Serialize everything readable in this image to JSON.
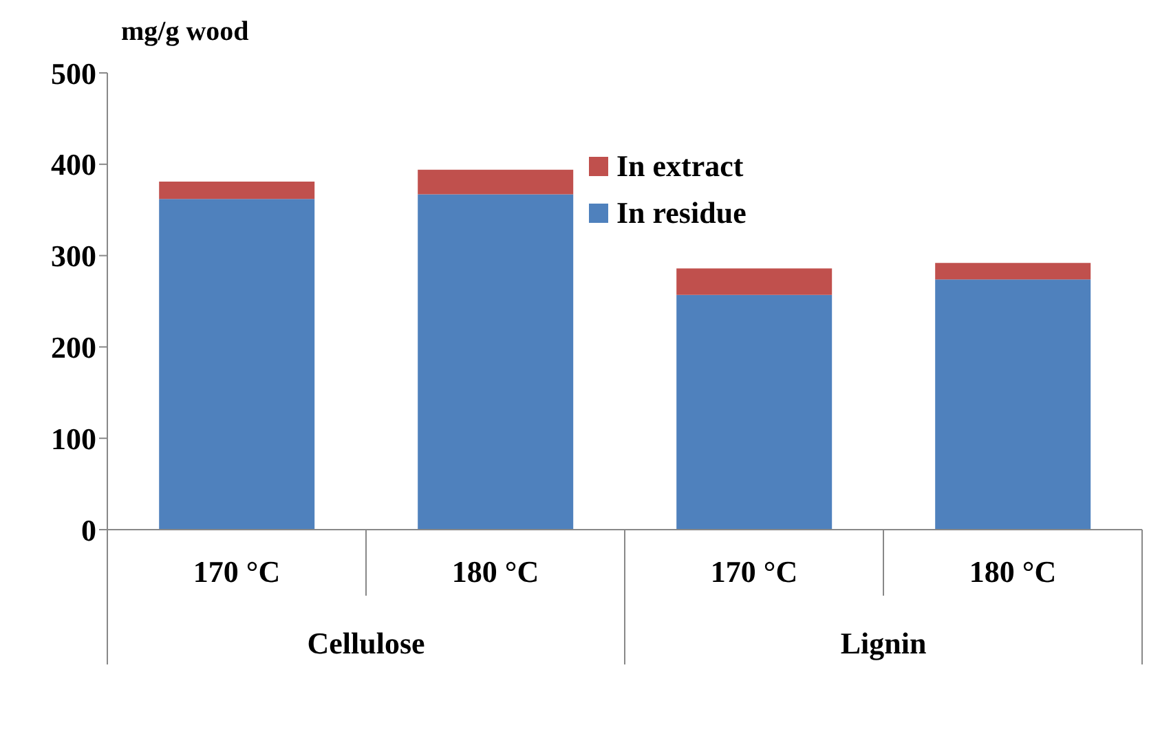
{
  "chart_data": {
    "type": "bar",
    "stacked": true,
    "ylabel": "mg/g wood",
    "categories": [
      "170 °C",
      "180 °C",
      "170 °C",
      "180 °C"
    ],
    "annotations": [
      "Cellulose",
      "Lignin"
    ],
    "series": [
      {
        "name": "In residue",
        "color": "#4f81bd",
        "values": [
          362,
          367,
          257,
          274
        ]
      },
      {
        "name": "In extract",
        "color": "#c0504d",
        "values": [
          19,
          27,
          29,
          18
        ]
      }
    ],
    "ylim": [
      0,
      500
    ],
    "yticks": [
      0,
      100,
      200,
      300,
      400,
      500
    ],
    "grid": false,
    "legend": "top right"
  }
}
